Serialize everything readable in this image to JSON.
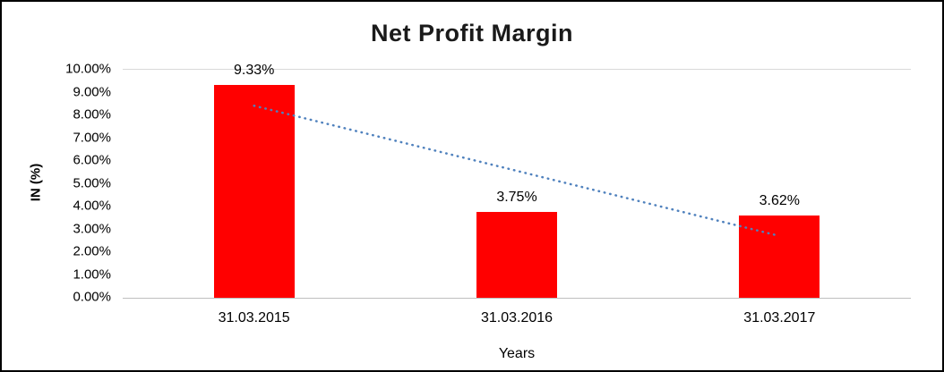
{
  "chart_data": {
    "type": "bar",
    "title": "Net Profit Margin",
    "categories": [
      "31.03.2015",
      "31.03.2016",
      "31.03.2017"
    ],
    "values": [
      9.33,
      3.75,
      3.62
    ],
    "data_labels": [
      "9.33%",
      "3.75%",
      "3.62%"
    ],
    "xlabel": "Years",
    "ylabel": "IN (%)",
    "ylim": [
      0,
      10
    ],
    "ytick_labels": [
      "0.00%",
      "1.00%",
      "2.00%",
      "3.00%",
      "4.00%",
      "5.00%",
      "6.00%",
      "7.00%",
      "8.00%",
      "9.00%",
      "10.00%"
    ],
    "grid": false,
    "legend": false,
    "bar_color": "#FF0000",
    "trendline": {
      "type": "linear",
      "style": "dotted",
      "color": "#4F81BD"
    }
  }
}
